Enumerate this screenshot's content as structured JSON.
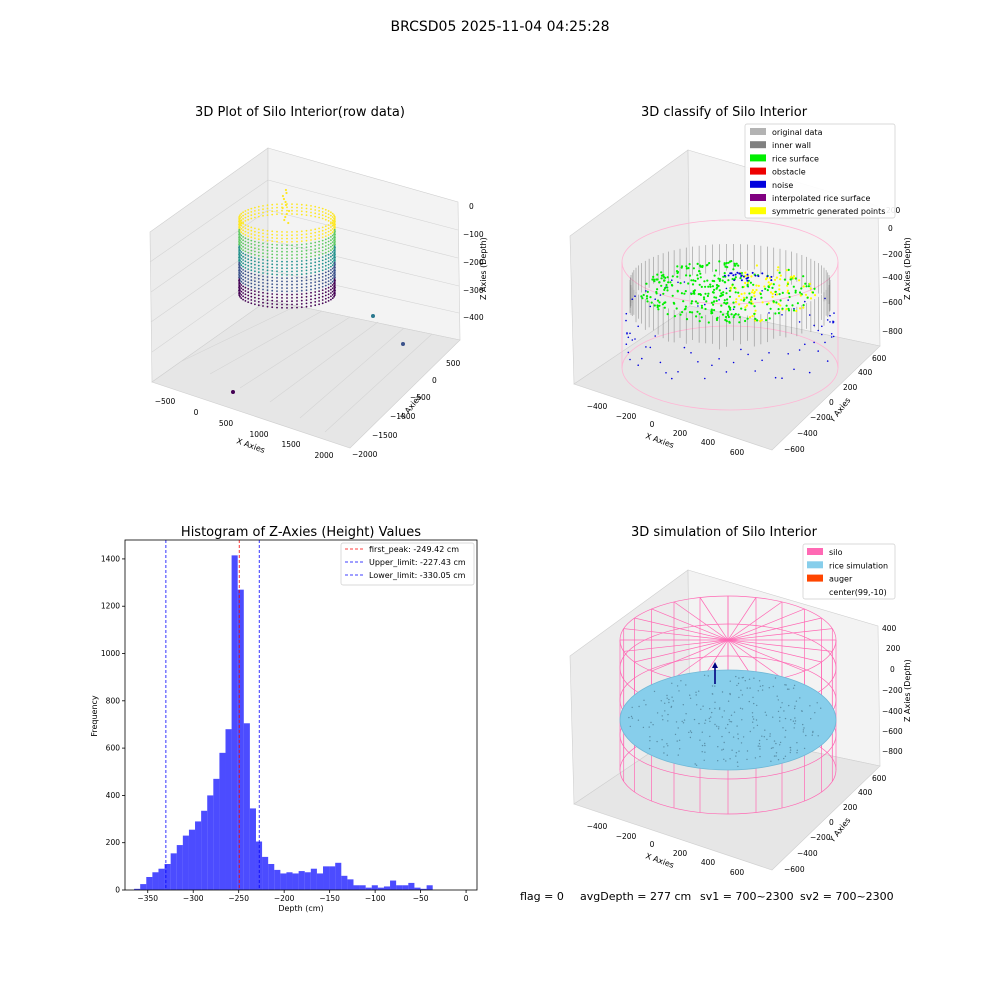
{
  "suptitle": "BRCSD05 2025-11-04 04:25:28",
  "panels": {
    "raw": {
      "title": "3D Plot of Silo Interior(row data)",
      "xlabel": "X Axies",
      "ylabel": "Y Axies",
      "zlabel": "Z Axies (Depth)",
      "xticks": [
        "−500",
        "0",
        "500",
        "1000",
        "1500",
        "2000"
      ],
      "yticks": [
        "500",
        "0",
        "−500",
        "−1000",
        "−1500",
        "−2000"
      ],
      "zticks": [
        "0",
        "−100",
        "−200",
        "−300",
        "−400"
      ]
    },
    "classify": {
      "title": "3D classify of Silo Interior",
      "xlabel": "X Axies",
      "ylabel": "Y Axies",
      "zlabel": "Z Axies (Depth)",
      "xticks": [
        "−400",
        "−200",
        "0",
        "200",
        "400",
        "600"
      ],
      "yticks": [
        "600",
        "400",
        "200",
        "0",
        "−200",
        "−400",
        "−600"
      ],
      "zticks": [
        "200",
        "0",
        "−200",
        "−400",
        "−600",
        "−800"
      ],
      "legend": [
        {
          "label": "original data",
          "color": "#b3b3b3"
        },
        {
          "label": "inner wall",
          "color": "#808080"
        },
        {
          "label": "rice surface",
          "color": "#00ee00"
        },
        {
          "label": "obstacle",
          "color": "#ee0000"
        },
        {
          "label": "noise",
          "color": "#0000dd"
        },
        {
          "label": "interpolated rice surface",
          "color": "#800080"
        },
        {
          "label": "symmetric generated points",
          "color": "#ffff00"
        }
      ]
    },
    "simulation": {
      "title": "3D simulation of Silo Interior",
      "xlabel": "X Axies",
      "ylabel": "Y Axies",
      "zlabel": "Z Axies (Depth)",
      "xticks": [
        "−400",
        "−200",
        "0",
        "200",
        "400",
        "600"
      ],
      "yticks": [
        "600",
        "400",
        "200",
        "0",
        "−200",
        "−400",
        "−600"
      ],
      "zticks": [
        "400",
        "200",
        "0",
        "−200",
        "−400",
        "−600",
        "−800"
      ],
      "legend": [
        {
          "label": "silo",
          "color": "#ff69b4"
        },
        {
          "label": "rice simulation",
          "color": "#87ceeb"
        },
        {
          "label": "auger",
          "color": "#ff4500"
        },
        {
          "label": "center(99,-10)",
          "color": ""
        }
      ]
    }
  },
  "status_line": {
    "flag": "flag = 0",
    "avg": "avgDepth = 277 cm",
    "sv1": "sv1 = 700~2300",
    "sv2": "sv2 = 700~2300"
  },
  "chart_data": {
    "type": "bar",
    "title": "Histogram of Z-Axies (Height) Values",
    "xlabel": "Depth (cm)",
    "ylabel": "Frequency",
    "xlim": [
      -375,
      12
    ],
    "ylim": [
      0,
      1480
    ],
    "xticks": [
      -350,
      -300,
      -250,
      -200,
      -150,
      -100,
      -50,
      0
    ],
    "xtick_labels": [
      "−350",
      "−300",
      "−250",
      "−200",
      "−150",
      "−100",
      "−50",
      "0"
    ],
    "yticks": [
      0,
      200,
      400,
      600,
      800,
      1000,
      1200,
      1400
    ],
    "bin_start": -365,
    "bin_width": 6.7,
    "values": [
      5,
      25,
      55,
      75,
      90,
      110,
      155,
      190,
      230,
      255,
      290,
      335,
      400,
      470,
      580,
      680,
      1415,
      1270,
      705,
      345,
      205,
      140,
      110,
      85,
      70,
      75,
      70,
      80,
      75,
      90,
      70,
      100,
      100,
      115,
      60,
      45,
      20,
      20,
      10,
      20,
      10,
      15,
      40,
      20,
      20,
      30,
      10,
      5,
      20
    ],
    "bar_color": "#0000ff",
    "vlines": [
      {
        "label": "first_peak: -249.42 cm",
        "x": -249.42,
        "color": "#ff0000"
      },
      {
        "label": "Upper_limit: -227.43 cm",
        "x": -227.43,
        "color": "#0000ff"
      },
      {
        "label": "Lower_limit: -330.05 cm",
        "x": -330.05,
        "color": "#0000ff"
      }
    ],
    "legend_loc": "upper right",
    "grid": false
  }
}
